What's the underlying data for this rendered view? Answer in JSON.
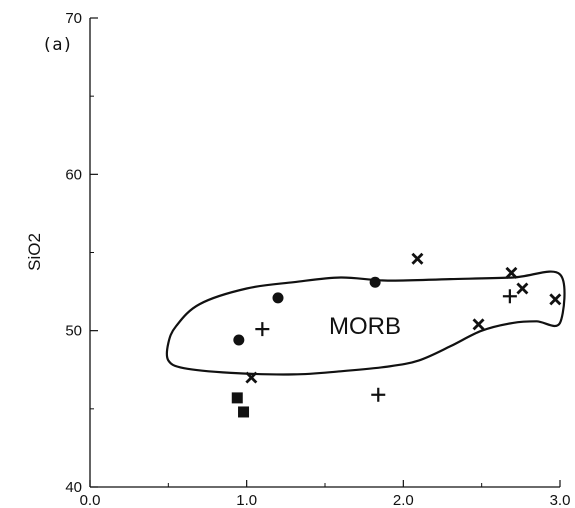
{
  "chart_data": {
    "type": "scatter",
    "panel_label": "(a)",
    "title": "",
    "xlabel": "",
    "ylabel": "SiO2",
    "xlim": [
      0.0,
      3.0
    ],
    "ylim": [
      40,
      70
    ],
    "x_ticks": [
      "0.0",
      "1.0",
      "2.0",
      "3.0"
    ],
    "y_ticks": [
      "40",
      "50",
      "60",
      "70"
    ],
    "grid": false,
    "region": {
      "label": "MORB",
      "outline": [
        [
          0.5,
          48.1
        ],
        [
          0.6,
          47.6
        ],
        [
          0.9,
          47.3
        ],
        [
          1.3,
          47.2
        ],
        [
          1.6,
          47.4
        ],
        [
          1.9,
          47.7
        ],
        [
          2.1,
          48.1
        ],
        [
          2.3,
          49.0
        ],
        [
          2.5,
          50.0
        ],
        [
          2.7,
          50.5
        ],
        [
          2.85,
          50.6
        ],
        [
          3.0,
          50.5
        ],
        [
          3.0,
          53.6
        ],
        [
          2.7,
          53.4
        ],
        [
          2.3,
          53.3
        ],
        [
          1.9,
          53.2
        ],
        [
          1.6,
          53.4
        ],
        [
          1.3,
          53.1
        ],
        [
          1.0,
          52.7
        ],
        [
          0.7,
          51.7
        ],
        [
          0.55,
          50.3
        ],
        [
          0.5,
          49.2
        ]
      ]
    },
    "series": [
      {
        "marker": "circle",
        "points": [
          [
            0.95,
            49.4
          ],
          [
            1.2,
            52.1
          ],
          [
            1.82,
            53.1
          ]
        ]
      },
      {
        "marker": "plus",
        "points": [
          [
            1.1,
            50.1
          ],
          [
            1.84,
            45.9
          ],
          [
            2.68,
            52.2
          ]
        ]
      },
      {
        "marker": "x",
        "points": [
          [
            1.03,
            47.0
          ],
          [
            2.09,
            54.6
          ],
          [
            2.48,
            50.4
          ],
          [
            2.69,
            53.7
          ],
          [
            2.76,
            52.7
          ],
          [
            2.97,
            52.0
          ]
        ]
      },
      {
        "marker": "square",
        "points": [
          [
            0.94,
            45.7
          ],
          [
            0.98,
            44.8
          ]
        ]
      }
    ]
  }
}
